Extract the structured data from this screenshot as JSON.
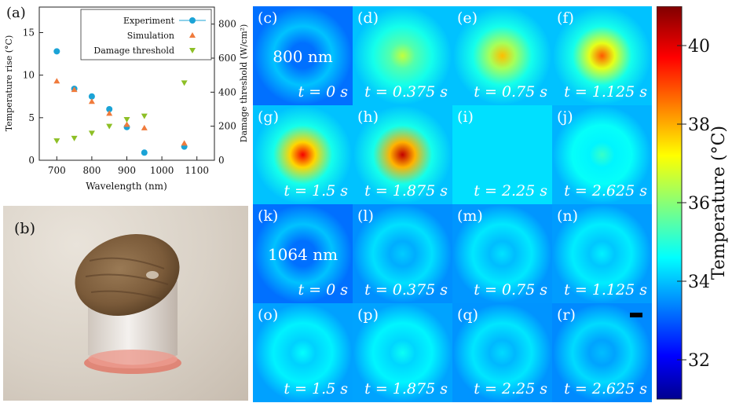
{
  "panel_a": {
    "label": "(a)",
    "chart_data": {
      "type": "scatter",
      "xlabel": "Wavelength (nm)",
      "ylabel": "Temperature rise (°C)",
      "y2label": "Damage threshold (W/cm²)",
      "xlim": [
        650,
        1150
      ],
      "ylim": [
        0,
        18
      ],
      "y2lim": [
        0,
        900
      ],
      "x_ticks": [
        "700",
        "800",
        "900",
        "1000",
        "1100"
      ],
      "y_ticks": [
        "0",
        "5",
        "10",
        "15"
      ],
      "y2_ticks": [
        "0",
        "200",
        "400",
        "600",
        "800"
      ],
      "legend_position": "top-right",
      "series": [
        {
          "name": "Experiment",
          "color": "#1ba3d6",
          "marker": "circle",
          "axis": "left",
          "x": [
            700,
            750,
            800,
            850,
            900,
            950,
            1064
          ],
          "y": [
            12.8,
            8.4,
            7.5,
            6.0,
            3.9,
            0.9,
            1.6
          ]
        },
        {
          "name": "Simulation",
          "color": "#f07b3c",
          "marker": "triangle-up",
          "axis": "left",
          "x": [
            700,
            750,
            800,
            850,
            900,
            950,
            1064
          ],
          "y": [
            9.3,
            8.3,
            6.9,
            5.5,
            4.2,
            3.8,
            2.0
          ]
        },
        {
          "name": "Damage threshold",
          "color": "#8dbf26",
          "marker": "triangle-down",
          "axis": "right",
          "x": [
            700,
            750,
            800,
            850,
            900,
            950,
            1064
          ],
          "y": [
            115,
            130,
            160,
            200,
            240,
            260,
            455
          ]
        }
      ]
    }
  },
  "panel_b": {
    "label": "(b)"
  },
  "tiles": [
    {
      "label": "(c)",
      "time": "t = 0 s",
      "wavelength": "800 nm",
      "heat": 0.0
    },
    {
      "label": "(d)",
      "time": "t = 0.375 s",
      "heat": 0.45
    },
    {
      "label": "(e)",
      "time": "t = 0.75 s",
      "heat": 0.62
    },
    {
      "label": "(f)",
      "time": "t = 1.125 s",
      "heat": 0.75
    },
    {
      "label": "(g)",
      "time": "t = 1.5 s",
      "heat": 0.88
    },
    {
      "label": "(h)",
      "time": "t = 1.875 s",
      "heat": 0.95
    },
    {
      "label": "(i)",
      "time": "t = 2.25 s",
      "heat": 0.32
    },
    {
      "label": "(j)",
      "time": "t = 2.625 s",
      "heat": 0.26
    },
    {
      "label": "(k)",
      "time": "t = 0 s",
      "wavelength": "1064 nm",
      "heat": 0.0
    },
    {
      "label": "(l)",
      "time": "t = 0.375 s",
      "heat": 0.12
    },
    {
      "label": "(m)",
      "time": "t = 0.75 s",
      "heat": 0.15
    },
    {
      "label": "(n)",
      "time": "t = 1.125 s",
      "heat": 0.17
    },
    {
      "label": "(o)",
      "time": "t = 1.5 s",
      "heat": 0.19
    },
    {
      "label": "(p)",
      "time": "t = 1.875 s",
      "heat": 0.2
    },
    {
      "label": "(q)",
      "time": "t = 2.25 s",
      "heat": 0.14
    },
    {
      "label": "(r)",
      "time": "t = 2.625 s",
      "heat": 0.1,
      "scalebar": true
    }
  ],
  "colorbar": {
    "label": "Temperature (°C)",
    "min": 31,
    "max": 41,
    "ticks": [
      "32",
      "34",
      "36",
      "38",
      "40"
    ]
  }
}
